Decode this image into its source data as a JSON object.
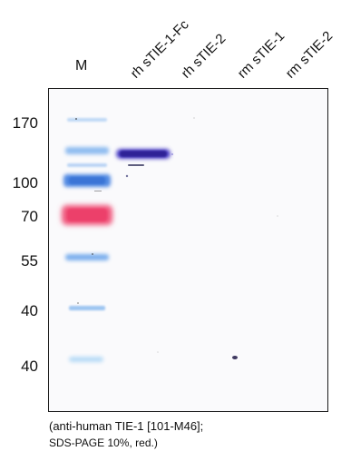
{
  "marker_lane_label": "M",
  "lane_labels": [
    "rh sTIE-1-Fc",
    "rh sTIE-2",
    "rm sTIE-1",
    "rm sTIE-2"
  ],
  "molecular_weights": [
    "170",
    "100",
    "70",
    "55",
    "40",
    "40"
  ],
  "caption": {
    "line1": "(anti-human TIE-1 [101-M46];",
    "line2": "SDS-PAGE 10%, red.)"
  },
  "colors": {
    "frame": "#1a1a1a",
    "membrane": "#fbfbfd",
    "ladder_blue": "#5b95e8",
    "ladder_light_blue": "#9fc7f2",
    "ladder_pink": "#f0557a",
    "sample_band": "#3a2fb5"
  }
}
